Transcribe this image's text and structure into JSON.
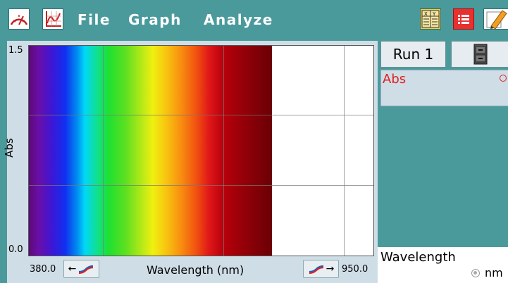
{
  "menu": {
    "file": "File",
    "graph": "Graph",
    "analyze": "Analyze"
  },
  "toolbar": {
    "icons": [
      "meter-icon",
      "graph-icon",
      "table-icon",
      "list-icon",
      "notes-icon"
    ],
    "table_header_x": "X",
    "table_header_y": "Y"
  },
  "graph": {
    "y_max": "1.5",
    "y_min": "0.0",
    "y_title": "Abs",
    "x_min": "380.0",
    "x_max": "950.0",
    "x_title": "Wavelength (nm)",
    "scale_left_arrow": "←",
    "scale_right_arrow": "→"
  },
  "right_panel": {
    "run_label": "Run 1",
    "abs_label": "Abs",
    "wavelength_label": "Wavelength",
    "wavelength_unit": "nm"
  },
  "colors": {
    "background": "#4a9a9c",
    "abs_red": "#e02020"
  },
  "chart_data": {
    "type": "line",
    "xlabel": "Wavelength (nm)",
    "ylabel": "Abs",
    "xlim": [
      380.0,
      950.0
    ],
    "ylim": [
      0.0,
      1.5
    ],
    "grid": true,
    "series": []
  }
}
